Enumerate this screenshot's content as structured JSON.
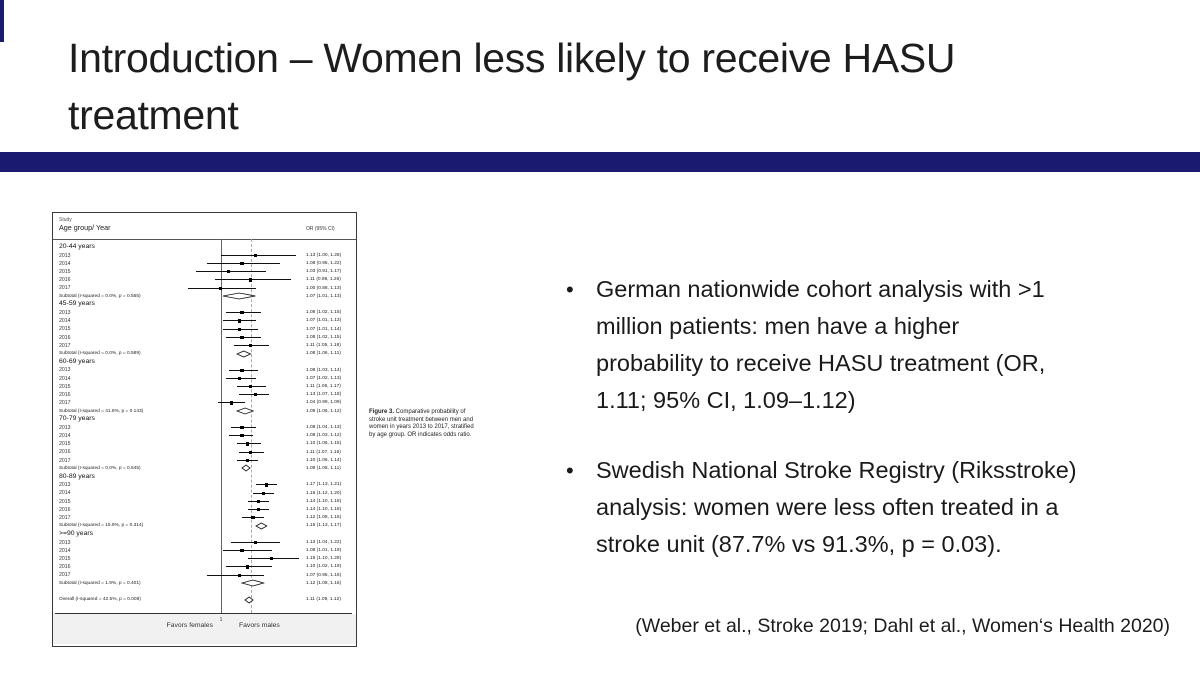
{
  "slide": {
    "accent_color": "#1a1a70",
    "bullet_char": "•",
    "title_lines": [
      "Introduction – Women less likely to receive HASU",
      "treatment"
    ],
    "bullets": [
      {
        "lines": [
          "German nationwide cohort analysis with >1",
          "million patients: men have a higher",
          "probability to receive HASU treatment (OR,",
          "1.11; 95% CI, 1.09–1.12)"
        ]
      },
      {
        "lines": [
          "Swedish National Stroke Registry (Riksstroke)",
          "analysis: women were less often treated in a",
          "stroke unit (87.7% vs 91.3%, p = 0.03)."
        ]
      }
    ],
    "citation": "(Weber et al., Stroke 2019; Dahl et al., Women‘s Health 2020)"
  },
  "figure": {
    "caption_label": "Figure 3.",
    "caption_text": " Comparative probability of stroke unit treatment between men and women in years 2013 to 2017, stratified by age group. OR indicates odds ratio."
  },
  "chart_data": {
    "type": "forest",
    "title": "Comparative probability of stroke unit treatment between men and women, 2013–2017, by age group",
    "col_header_small": "Study",
    "col_header_left": "Age group/ Year",
    "col_header_right": "OR (95% CI)",
    "axis": {
      "left_label": "Favors females",
      "right_label": "Favors males",
      "tick_label": "1",
      "ref_value": 1,
      "overall_dashed_line": 1.11,
      "scale": "odds ratio"
    },
    "groups": [
      {
        "label": "20-44 years",
        "rows": [
          {
            "label": "2013",
            "or": 1.13,
            "lo": 1.0,
            "hi": 1.28,
            "text": "1.13 (1.00, 1.28)"
          },
          {
            "label": "2014",
            "or": 1.08,
            "lo": 0.95,
            "hi": 1.22,
            "text": "1.08 (0.95, 1.22)"
          },
          {
            "label": "2015",
            "or": 1.03,
            "lo": 0.91,
            "hi": 1.17,
            "text": "1.03 (0.91, 1.17)"
          },
          {
            "label": "2016",
            "or": 1.11,
            "lo": 0.98,
            "hi": 1.26,
            "text": "1.11 (0.98, 1.26)"
          },
          {
            "label": "2017",
            "or": 1.0,
            "lo": 0.88,
            "hi": 1.13,
            "text": "1.00 (0.88, 1.13)"
          }
        ],
        "subtotal": {
          "label": "Subtotal  (I-squared = 0.0%, p = 0.555)",
          "or": 1.07,
          "lo": 1.01,
          "hi": 1.13,
          "text": "1.07 (1.01, 1.13)"
        }
      },
      {
        "label": "45-59 years",
        "rows": [
          {
            "label": "2013",
            "or": 1.08,
            "lo": 1.02,
            "hi": 1.15,
            "text": "1.08 (1.02, 1.15)"
          },
          {
            "label": "2014",
            "or": 1.07,
            "lo": 1.01,
            "hi": 1.13,
            "text": "1.07 (1.01, 1.13)"
          },
          {
            "label": "2015",
            "or": 1.07,
            "lo": 1.01,
            "hi": 1.14,
            "text": "1.07 (1.01, 1.14)"
          },
          {
            "label": "2016",
            "or": 1.08,
            "lo": 1.02,
            "hi": 1.15,
            "text": "1.08 (1.02, 1.15)"
          },
          {
            "label": "2017",
            "or": 1.11,
            "lo": 1.05,
            "hi": 1.18,
            "text": "1.11 (1.05, 1.18)"
          }
        ],
        "subtotal": {
          "label": "Subtotal  (I-squared = 0.0%, p = 0.589)",
          "or": 1.08,
          "lo": 1.06,
          "hi": 1.11,
          "text": "1.08 (1.06, 1.11)"
        }
      },
      {
        "label": "60-69 years",
        "rows": [
          {
            "label": "2013",
            "or": 1.08,
            "lo": 1.03,
            "hi": 1.14,
            "text": "1.08 (1.03, 1.14)"
          },
          {
            "label": "2014",
            "or": 1.07,
            "lo": 1.02,
            "hi": 1.13,
            "text": "1.07 (1.02, 1.13)"
          },
          {
            "label": "2015",
            "or": 1.11,
            "lo": 1.06,
            "hi": 1.17,
            "text": "1.11 (1.06, 1.17)"
          },
          {
            "label": "2016",
            "or": 1.13,
            "lo": 1.07,
            "hi": 1.18,
            "text": "1.13 (1.07, 1.18)"
          },
          {
            "label": "2017",
            "or": 1.04,
            "lo": 0.99,
            "hi": 1.09,
            "text": "1.04 (0.99, 1.09)"
          }
        ],
        "subtotal": {
          "label": "Subtotal  (I-squared = 41.8%, p = 0.143)",
          "or": 1.09,
          "lo": 1.06,
          "hi": 1.12,
          "text": "1.09 (1.06, 1.12)"
        }
      },
      {
        "label": "70-79 years",
        "rows": [
          {
            "label": "2013",
            "or": 1.08,
            "lo": 1.04,
            "hi": 1.13,
            "text": "1.08 (1.04, 1.13)"
          },
          {
            "label": "2014",
            "or": 1.08,
            "lo": 1.03,
            "hi": 1.12,
            "text": "1.08 (1.03, 1.12)"
          },
          {
            "label": "2015",
            "or": 1.1,
            "lo": 1.06,
            "hi": 1.15,
            "text": "1.10 (1.06, 1.15)"
          },
          {
            "label": "2016",
            "or": 1.11,
            "lo": 1.07,
            "hi": 1.16,
            "text": "1.11 (1.07, 1.16)"
          },
          {
            "label": "2017",
            "or": 1.1,
            "lo": 1.06,
            "hi": 1.14,
            "text": "1.10 (1.06, 1.14)"
          }
        ],
        "subtotal": {
          "label": "Subtotal  (I-squared = 0.0%, p = 0.645)",
          "or": 1.09,
          "lo": 1.08,
          "hi": 1.11,
          "text": "1.09 (1.08, 1.11)"
        }
      },
      {
        "label": "80-89 years",
        "rows": [
          {
            "label": "2013",
            "or": 1.17,
            "lo": 1.13,
            "hi": 1.21,
            "text": "1.17 (1.13, 1.21)"
          },
          {
            "label": "2014",
            "or": 1.16,
            "lo": 1.12,
            "hi": 1.2,
            "text": "1.16 (1.12, 1.20)"
          },
          {
            "label": "2015",
            "or": 1.14,
            "lo": 1.1,
            "hi": 1.18,
            "text": "1.14 (1.10, 1.18)"
          },
          {
            "label": "2016",
            "or": 1.14,
            "lo": 1.1,
            "hi": 1.18,
            "text": "1.14 (1.10, 1.18)"
          },
          {
            "label": "2017",
            "or": 1.12,
            "lo": 1.08,
            "hi": 1.16,
            "text": "1.12 (1.08, 1.16)"
          }
        ],
        "subtotal": {
          "label": "Subtotal  (I-squared = 15.9%, p = 0.314)",
          "or": 1.15,
          "lo": 1.13,
          "hi": 1.17,
          "text": "1.15 (1.13, 1.17)"
        }
      },
      {
        "label": ">=90 years",
        "rows": [
          {
            "label": "2013",
            "or": 1.13,
            "lo": 1.04,
            "hi": 1.22,
            "text": "1.13 (1.04, 1.22)"
          },
          {
            "label": "2014",
            "or": 1.08,
            "lo": 1.01,
            "hi": 1.19,
            "text": "1.08 (1.01, 1.19)"
          },
          {
            "label": "2015",
            "or": 1.19,
            "lo": 1.1,
            "hi": 1.29,
            "text": "1.19 (1.10, 1.29)"
          },
          {
            "label": "2016",
            "or": 1.1,
            "lo": 1.02,
            "hi": 1.19,
            "text": "1.10 (1.02, 1.19)"
          },
          {
            "label": "2017",
            "or": 1.07,
            "lo": 0.95,
            "hi": 1.16,
            "text": "1.07 (0.95, 1.16)"
          }
        ],
        "subtotal": {
          "label": "Subtotal  (I-squared = 1.9%, p = 0.401)",
          "or": 1.12,
          "lo": 1.08,
          "hi": 1.16,
          "text": "1.12 (1.08, 1.16)"
        }
      }
    ],
    "overall": {
      "label": "Overall  (I-squared = 42.5%, p = 0.008)",
      "or": 1.11,
      "lo": 1.09,
      "hi": 1.12,
      "text": "1.11 (1.09, 1.12)"
    }
  }
}
